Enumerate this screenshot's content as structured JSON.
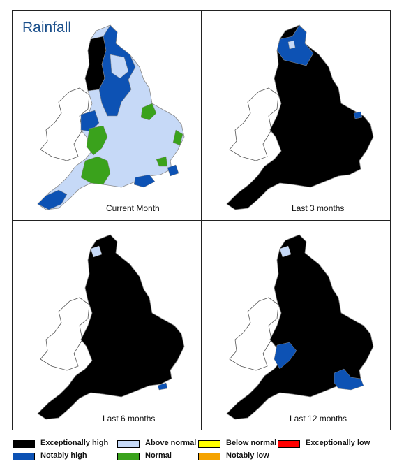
{
  "title": "Rainfall",
  "colors": {
    "exceptionally_high": "#000000",
    "notably_high": "#0d52b4",
    "above_normal": "#c6d9f7",
    "normal": "#3aa21c",
    "below_normal": "#ffff00",
    "notably_low": "#f5a300",
    "exceptionally_low": "#ff0000",
    "boundary": "#8a8a8a",
    "wales_outline": "#555555"
  },
  "panels": [
    {
      "caption": "Current Month"
    },
    {
      "caption": "Last 3 months"
    },
    {
      "caption": "Last 6 months"
    },
    {
      "caption": "Last 12 months"
    }
  ],
  "legend": [
    {
      "label": "Exceptionally high",
      "color": "#000000"
    },
    {
      "label": "Notably high",
      "color": "#0d52b4"
    },
    {
      "label": "Above normal",
      "color": "#c6d9f7"
    },
    {
      "label": "Normal",
      "color": "#3aa21c"
    },
    {
      "label": "Below normal",
      "color": "#ffff00"
    },
    {
      "label": "Notably low",
      "color": "#f5a300"
    },
    {
      "label": "Exceptionally low",
      "color": "#ff0000"
    }
  ]
}
